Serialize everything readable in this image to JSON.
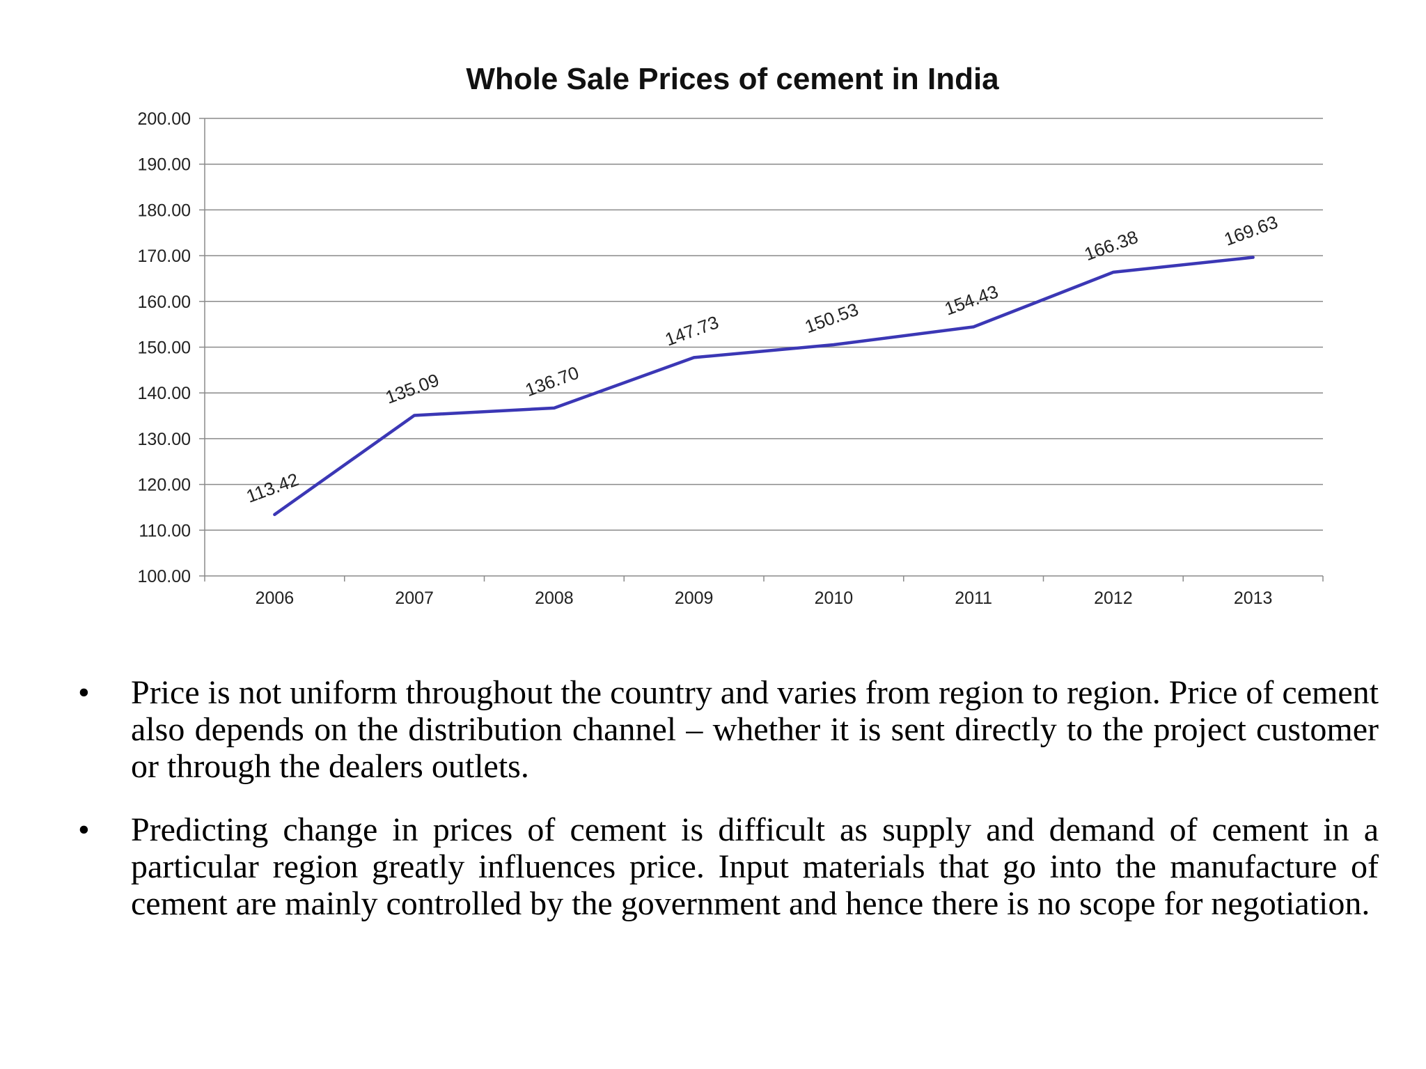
{
  "chart_data": {
    "type": "line",
    "title": "Whole Sale Prices of cement in India",
    "xlabel": "",
    "ylabel": "",
    "categories": [
      "2006",
      "2007",
      "2008",
      "2009",
      "2010",
      "2011",
      "2012",
      "2013"
    ],
    "values": [
      113.42,
      135.09,
      136.7,
      147.73,
      150.53,
      154.43,
      166.38,
      169.63
    ],
    "data_labels": [
      "113.42",
      "135.09",
      "136.70",
      "147.73",
      "150.53",
      "154.43",
      "166.38",
      "169.63"
    ],
    "ylim": [
      100,
      200
    ],
    "y_ticks": [
      "100.00",
      "110.00",
      "120.00",
      "130.00",
      "140.00",
      "150.00",
      "160.00",
      "170.00",
      "180.00",
      "190.00",
      "200.00"
    ],
    "grid": true,
    "legend": "none",
    "line_color": "#3b37b5"
  },
  "bullets": [
    {
      "marker": "•",
      "text": "Price is not uniform throughout the country and varies from region to region. Price of cement also depends on the distribution channel – whether it is sent directly to the project customer or through the dealers outlets."
    },
    {
      "marker": "•",
      "text": "Predicting change in prices of cement is difficult as supply and demand of cement in a particular region greatly influences price. Input materials that go into the manufacture of cement are mainly controlled by the government and hence there is no scope for negotiation."
    }
  ]
}
